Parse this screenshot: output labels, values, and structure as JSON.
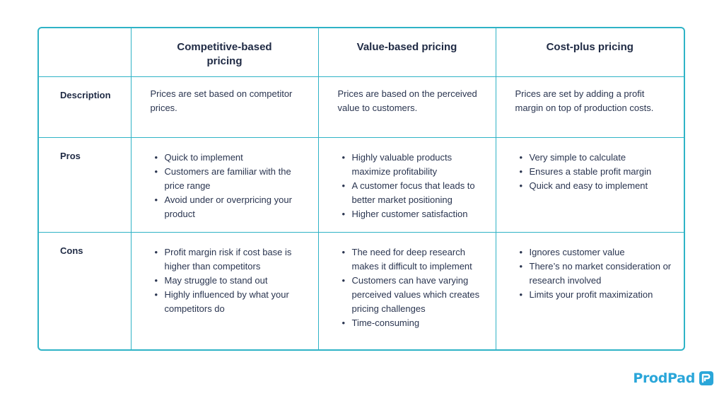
{
  "table": {
    "headers": [
      "",
      "Competitive-based pricing",
      "Value-based pricing",
      "Cost-plus pricing"
    ],
    "rows": {
      "description": {
        "label": "Description",
        "cells": [
          "Prices are set based on competitor prices.",
          "Prices are based on the perceived value to customers.",
          "Prices are set by adding a profit margin on top of production costs."
        ]
      },
      "pros": {
        "label": "Pros",
        "cells": [
          [
            "Quick to implement",
            "Customers are familiar with the price range",
            "Avoid under or overpricing your product"
          ],
          [
            "Highly valuable products maximize profitability",
            "A customer focus that leads to better market positioning",
            "Higher customer satisfaction"
          ],
          [
            "Very simple to calculate",
            "Ensures a stable profit margin",
            "Quick and easy to implement"
          ]
        ]
      },
      "cons": {
        "label": "Cons",
        "cells": [
          [
            "Profit margin risk if cost base is higher than competitors",
            "May struggle to stand out",
            "Highly influenced by what your competitors do"
          ],
          [
            "The need for deep research makes it difficult to implement",
            "Customers can have varying perceived values which creates pricing challenges",
            "Time-consuming"
          ],
          [
            "Ignores customer value",
            "There’s no market consideration or research involved",
            "Limits your profit maximization"
          ]
        ]
      }
    }
  },
  "brand": {
    "name": "ProdPad",
    "color": "#2aa6d9",
    "icon": "prodpad-logo-icon"
  },
  "colors": {
    "border": "#2fb3c6",
    "text": "#1f2a44"
  }
}
